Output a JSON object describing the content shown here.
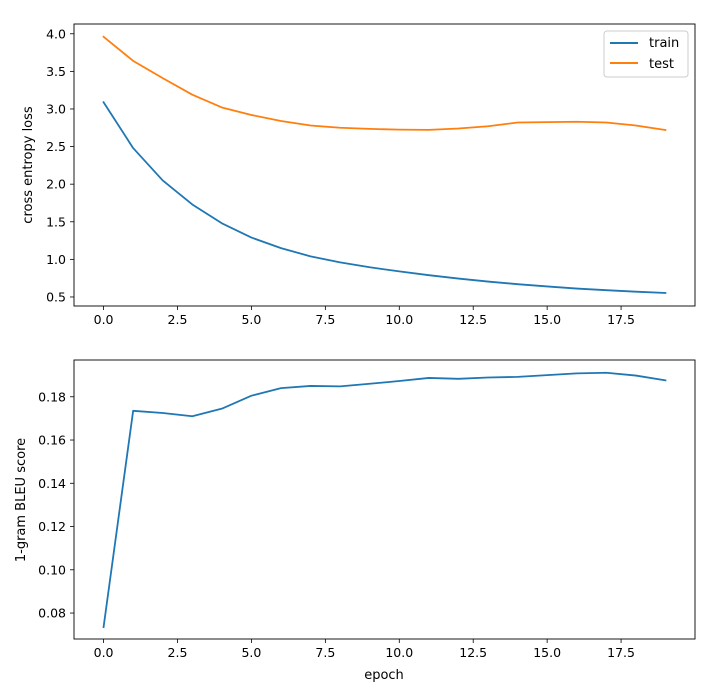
{
  "chart_data": [
    {
      "type": "line",
      "title": "",
      "xlabel": "",
      "ylabel": "cross entropy loss",
      "xlim": [
        -1.0,
        20.0
      ],
      "ylim": [
        0.38,
        4.13
      ],
      "xticks": [
        0.0,
        2.5,
        5.0,
        7.5,
        10.0,
        12.5,
        15.0,
        17.5
      ],
      "xtick_labels": [
        "0.0",
        "2.5",
        "5.0",
        "7.5",
        "10.0",
        "12.5",
        "15.0",
        "17.5"
      ],
      "yticks": [
        0.5,
        1.0,
        1.5,
        2.0,
        2.5,
        3.0,
        3.5,
        4.0
      ],
      "ytick_labels": [
        "0.5",
        "1.0",
        "1.5",
        "2.0",
        "2.5",
        "3.0",
        "3.5",
        "4.0"
      ],
      "grid": false,
      "legend": "top-right",
      "x": [
        0,
        1,
        2,
        3,
        4,
        5,
        6,
        7,
        8,
        9,
        10,
        11,
        12,
        13,
        14,
        15,
        16,
        17,
        18,
        19
      ],
      "series": [
        {
          "name": "train",
          "color": "#1f77b4",
          "values": [
            3.09,
            2.48,
            2.05,
            1.73,
            1.48,
            1.29,
            1.15,
            1.04,
            0.96,
            0.895,
            0.84,
            0.79,
            0.745,
            0.705,
            0.67,
            0.64,
            0.612,
            0.59,
            0.57,
            0.553
          ]
        },
        {
          "name": "test",
          "color": "#ff7f0e",
          "values": [
            3.96,
            3.64,
            3.41,
            3.19,
            3.02,
            2.92,
            2.84,
            2.78,
            2.75,
            2.735,
            2.725,
            2.722,
            2.74,
            2.77,
            2.82,
            2.825,
            2.83,
            2.82,
            2.78,
            2.72
          ]
        }
      ]
    },
    {
      "type": "line",
      "title": "",
      "xlabel": "epoch",
      "ylabel": "1-gram BLEU score",
      "xlim": [
        -1.0,
        20.0
      ],
      "ylim": [
        0.068,
        0.197
      ],
      "xticks": [
        0.0,
        2.5,
        5.0,
        7.5,
        10.0,
        12.5,
        15.0,
        17.5
      ],
      "xtick_labels": [
        "0.0",
        "2.5",
        "5.0",
        "7.5",
        "10.0",
        "12.5",
        "15.0",
        "17.5"
      ],
      "yticks": [
        0.08,
        0.1,
        0.12,
        0.14,
        0.16,
        0.18
      ],
      "ytick_labels": [
        "0.08",
        "0.10",
        "0.12",
        "0.14",
        "0.16",
        "0.18"
      ],
      "grid": false,
      "x": [
        0,
        1,
        2,
        3,
        4,
        5,
        6,
        7,
        8,
        9,
        10,
        11,
        12,
        13,
        14,
        15,
        16,
        17,
        18,
        19
      ],
      "series": [
        {
          "color": "#1f77b4",
          "values": [
            0.0735,
            0.1735,
            0.1725,
            0.171,
            0.1745,
            0.1805,
            0.184,
            0.185,
            0.1848,
            0.186,
            0.1873,
            0.1887,
            0.1883,
            0.1889,
            0.1892,
            0.19,
            0.1908,
            0.1911,
            0.1898,
            0.1876
          ]
        }
      ]
    }
  ]
}
